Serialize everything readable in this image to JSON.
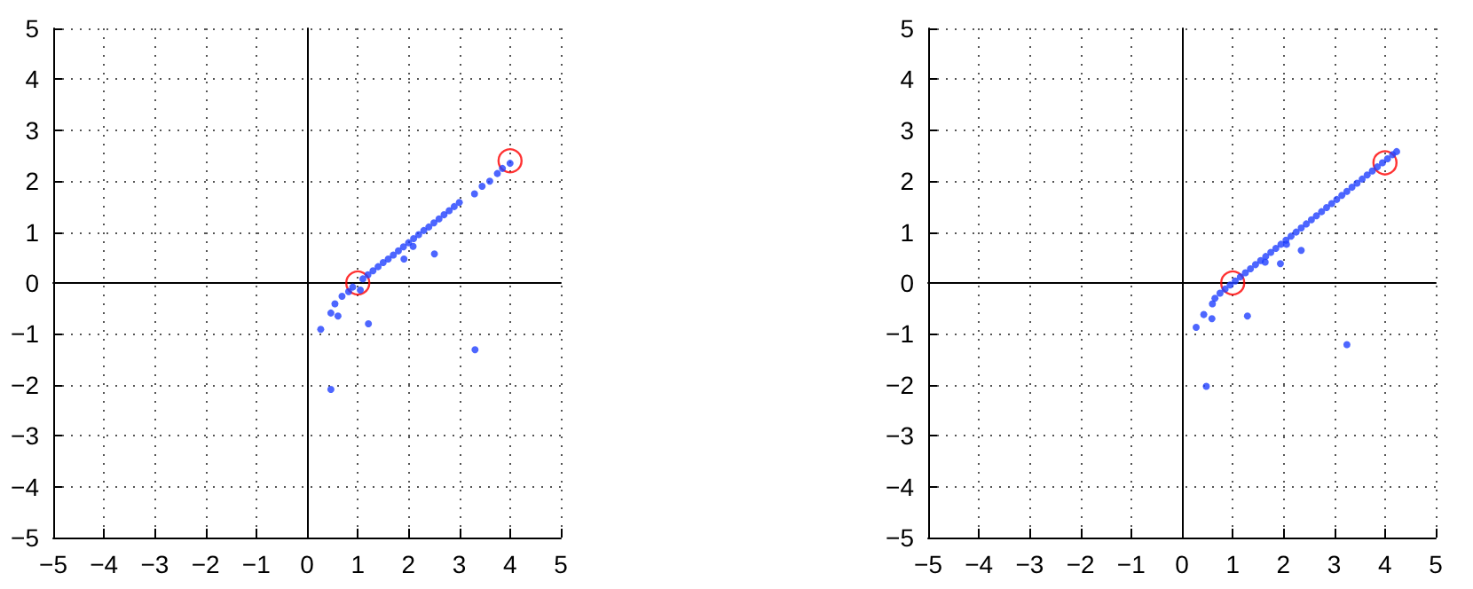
{
  "chart_data": [
    {
      "type": "scatter",
      "marker": "circle",
      "grid": true,
      "series": [
        {
          "color": "#2040ff",
          "x": [
            0.27,
            0.47,
            0.61,
            1.21,
            0.47,
            3.31,
            2.51,
            1.91,
            2.09,
            0.55,
            0.69,
            0.82,
            0.9,
            1.05,
            1.1,
            1.2,
            1.3,
            1.4,
            1.5,
            1.6,
            1.7,
            1.8,
            1.9,
            2.0,
            2.1,
            2.2,
            2.3,
            2.4,
            2.5,
            2.6,
            2.7,
            2.8,
            2.9,
            3.0,
            3.3,
            3.45,
            3.6,
            3.75,
            3.85,
            4.0
          ],
          "values": [
            -0.91,
            -0.59,
            -0.65,
            -0.8,
            -2.09,
            -1.31,
            0.57,
            0.47,
            0.72,
            -0.41,
            -0.26,
            -0.17,
            -0.08,
            -0.14,
            0.08,
            0.16,
            0.24,
            0.32,
            0.4,
            0.47,
            0.55,
            0.63,
            0.71,
            0.79,
            0.87,
            0.95,
            1.03,
            1.1,
            1.18,
            1.26,
            1.34,
            1.42,
            1.5,
            1.58,
            1.75,
            1.9,
            2.0,
            2.15,
            2.25,
            2.35
          ]
        },
        {
          "color": "#ff0000",
          "x": [
            1,
            4
          ],
          "values": [
            0,
            2.4
          ]
        }
      ],
      "xlim": [
        -5,
        5
      ],
      "ylim": [
        -5,
        5
      ],
      "xticks": [
        -5,
        -4,
        -3,
        -2,
        -1,
        0,
        1,
        2,
        3,
        4,
        5
      ],
      "yticks": [
        -5,
        -4,
        -3,
        -2,
        -1,
        0,
        1,
        2,
        3,
        4,
        5
      ]
    },
    {
      "type": "scatter",
      "marker": "circle",
      "grid": true,
      "series": [
        {
          "color": "#2040ff",
          "x": [
            0.28,
            0.43,
            0.59,
            1.29,
            0.48,
            3.25,
            2.35,
            1.94,
            2.06,
            1.64,
            0.6,
            0.65,
            0.75,
            0.85,
            0.95,
            1.05,
            1.15,
            1.25,
            1.35,
            1.45,
            1.55,
            1.65,
            1.75,
            1.85,
            1.95,
            2.05,
            2.15,
            2.25,
            2.35,
            2.45,
            2.55,
            2.65,
            2.75,
            2.85,
            2.95,
            3.05,
            3.15,
            3.25,
            3.35,
            3.45,
            3.55,
            3.65,
            3.75,
            3.85,
            3.95,
            4.05,
            4.15,
            4.23
          ],
          "values": [
            -0.87,
            -0.62,
            -0.7,
            -0.65,
            -2.03,
            -1.21,
            0.64,
            0.38,
            0.76,
            0.41,
            -0.41,
            -0.3,
            -0.2,
            -0.12,
            -0.04,
            0.04,
            0.12,
            0.2,
            0.28,
            0.36,
            0.44,
            0.52,
            0.6,
            0.68,
            0.76,
            0.84,
            0.92,
            1.0,
            1.08,
            1.16,
            1.24,
            1.32,
            1.4,
            1.48,
            1.56,
            1.64,
            1.72,
            1.8,
            1.88,
            1.96,
            2.04,
            2.12,
            2.2,
            2.28,
            2.36,
            2.44,
            2.52,
            2.58
          ]
        },
        {
          "color": "#ff0000",
          "x": [
            1,
            4
          ],
          "values": [
            0,
            2.36
          ]
        }
      ],
      "xlim": [
        -5,
        5
      ],
      "ylim": [
        -5,
        5
      ],
      "xticks": [
        -5,
        -4,
        -3,
        -2,
        -1,
        0,
        1,
        2,
        3,
        4,
        5
      ],
      "yticks": [
        -5,
        -4,
        -3,
        -2,
        -1,
        0,
        1,
        2,
        3,
        4,
        5
      ]
    }
  ]
}
